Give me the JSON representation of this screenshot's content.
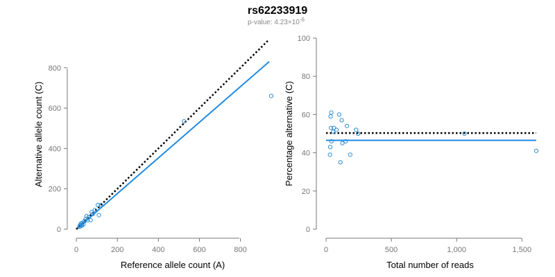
{
  "title": "rs62233919",
  "subtitle": {
    "prefix": "p-value: 4.23×10",
    "exponent": "-6"
  },
  "colors": {
    "point": "#2b8cd6",
    "fit_line": "#1f8ae0",
    "reference_line": "#000000",
    "axis": "#777777"
  },
  "chart_data": [
    {
      "type": "scatter",
      "xlabel": "Reference allele count (A)",
      "ylabel": "Alternative allele count (C)",
      "xlim": [
        0,
        940
      ],
      "ylim": [
        0,
        940
      ],
      "x_ticks": [
        0,
        200,
        400,
        600,
        800
      ],
      "x_tick_labels": [
        "0",
        "200",
        "400",
        "600",
        "800"
      ],
      "y_ticks": [
        0,
        200,
        400,
        600,
        800
      ],
      "y_tick_labels": [
        "0",
        "200",
        "400",
        "600",
        "800"
      ],
      "points": [
        {
          "x": 15,
          "y": 12
        },
        {
          "x": 18,
          "y": 20
        },
        {
          "x": 20,
          "y": 15
        },
        {
          "x": 22,
          "y": 28
        },
        {
          "x": 25,
          "y": 22
        },
        {
          "x": 28,
          "y": 18
        },
        {
          "x": 30,
          "y": 32
        },
        {
          "x": 35,
          "y": 25
        },
        {
          "x": 40,
          "y": 40
        },
        {
          "x": 45,
          "y": 50
        },
        {
          "x": 50,
          "y": 65
        },
        {
          "x": 55,
          "y": 45
        },
        {
          "x": 60,
          "y": 60
        },
        {
          "x": 70,
          "y": 45
        },
        {
          "x": 75,
          "y": 85
        },
        {
          "x": 80,
          "y": 75
        },
        {
          "x": 90,
          "y": 95
        },
        {
          "x": 105,
          "y": 120
        },
        {
          "x": 110,
          "y": 70
        },
        {
          "x": 120,
          "y": 120
        },
        {
          "x": 525,
          "y": 535
        },
        {
          "x": 950,
          "y": 660
        }
      ],
      "reference_line": {
        "style": "dotted",
        "from": [
          0,
          0
        ],
        "to": [
          940,
          940
        ]
      },
      "fit_line": {
        "style": "solid",
        "from": [
          0,
          0
        ],
        "to": [
          940,
          830
        ]
      }
    },
    {
      "type": "scatter",
      "xlabel": "Total number of reads",
      "ylabel": "Percentage alternative (C)",
      "xlim": [
        0,
        1610
      ],
      "ylim": [
        0,
        100
      ],
      "x_ticks": [
        0,
        500,
        1000,
        1500
      ],
      "x_tick_labels": [
        "0",
        "500",
        "1,000",
        "1,500"
      ],
      "y_ticks": [
        0,
        20,
        40,
        60,
        80,
        100
      ],
      "y_tick_labels": [
        "0",
        "20",
        "40",
        "60",
        "80",
        "100"
      ],
      "points": [
        {
          "x": 30,
          "y": 39
        },
        {
          "x": 32,
          "y": 43
        },
        {
          "x": 35,
          "y": 59
        },
        {
          "x": 38,
          "y": 53
        },
        {
          "x": 40,
          "y": 61
        },
        {
          "x": 42,
          "y": 46
        },
        {
          "x": 55,
          "y": 51
        },
        {
          "x": 60,
          "y": 53
        },
        {
          "x": 80,
          "y": 52
        },
        {
          "x": 100,
          "y": 60
        },
        {
          "x": 110,
          "y": 35
        },
        {
          "x": 120,
          "y": 57
        },
        {
          "x": 125,
          "y": 45
        },
        {
          "x": 150,
          "y": 46
        },
        {
          "x": 160,
          "y": 54
        },
        {
          "x": 185,
          "y": 39
        },
        {
          "x": 230,
          "y": 52
        },
        {
          "x": 245,
          "y": 50
        },
        {
          "x": 1060,
          "y": 50
        },
        {
          "x": 1610,
          "y": 41
        }
      ],
      "reference_line": {
        "style": "dotted",
        "y": 50.3
      },
      "fit_line": {
        "style": "solid",
        "y": 46.5
      }
    }
  ]
}
